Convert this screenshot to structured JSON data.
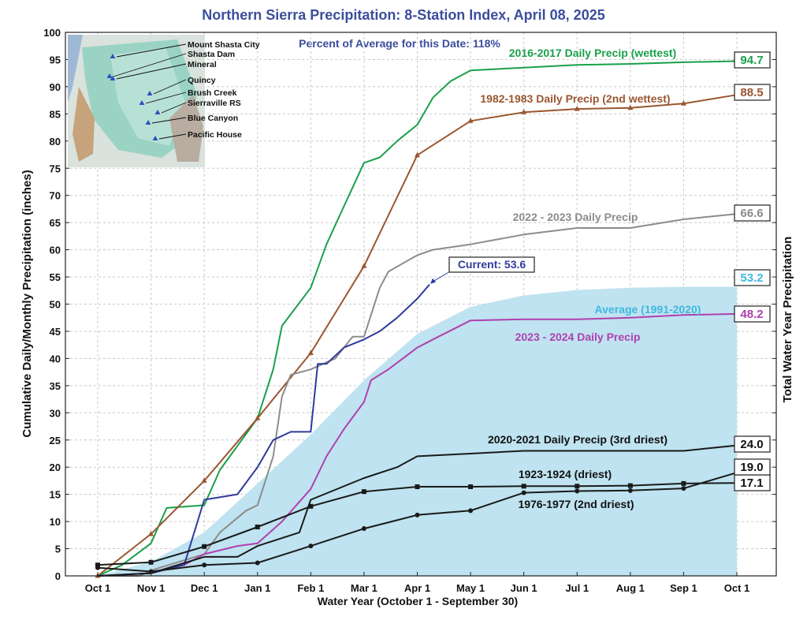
{
  "chart_data": {
    "type": "line",
    "title": "Northern Sierra Precipitation: 8-Station Index, April 08, 2025",
    "subtitle": "Percent of Average for this Date: 118%",
    "xlabel": "Water Year (October 1 - September 30)",
    "ylabel": "Cumulative Daily/Monthly Precipitation (inches)",
    "ylabel_right": "Total Water Year Precipitation",
    "x_tick_labels": [
      "Oct 1",
      "Nov 1",
      "Dec 1",
      "Jan 1",
      "Feb 1",
      "Mar 1",
      "Apr 1",
      "May 1",
      "Jun 1",
      "Jul 1",
      "Aug 1",
      "Sep 1",
      "Oct 1"
    ],
    "ylim": [
      0,
      100
    ],
    "y_ticks": [
      0,
      5,
      10,
      15,
      20,
      25,
      30,
      35,
      40,
      45,
      50,
      55,
      60,
      65,
      70,
      75,
      80,
      85,
      90,
      95,
      100
    ],
    "grid": true,
    "annotation": "Current: 53.6",
    "map_stations": [
      "Mount Shasta City",
      "Shasta Dam",
      "Mineral",
      "Quincy",
      "Brush Creek",
      "Sierraville RS",
      "Blue Canyon",
      "Pacific House"
    ],
    "series": [
      {
        "name": "Average (1991-2020)",
        "kind": "area",
        "color": "#bfe3f0",
        "label_color": "#3fb8e0",
        "total_label": "53.2",
        "x": [
          "Oct 1",
          "Nov 1",
          "Dec 1",
          "Jan 1",
          "Feb 1",
          "Mar 1",
          "Apr 1",
          "May 1",
          "Jun 1",
          "Jul 1",
          "Aug 1",
          "Sep 1",
          "Oct 1"
        ],
        "y": [
          0,
          2.6,
          8.0,
          17.0,
          26.0,
          36.0,
          44.5,
          49.5,
          51.6,
          52.6,
          53.0,
          53.2,
          53.2
        ]
      },
      {
        "name": "2016-2017 Daily Precip (wettest)",
        "color": "#1aa04a",
        "total_label": "94.7",
        "x": [
          "Oct 1",
          "Oct 15",
          "Nov 1",
          "Nov 10",
          "Dec 1",
          "Dec 10",
          "Jan 1",
          "Jan 10",
          "Jan 15",
          "Feb 1",
          "Feb 10",
          "Feb 20",
          "Mar 1",
          "Mar 10",
          "Mar 20",
          "Apr 1",
          "Apr 10",
          "Apr 20",
          "May 1",
          "Jun 1",
          "Jul 1",
          "Aug 1",
          "Sep 1",
          "Oct 1"
        ],
        "y": [
          0,
          2,
          6,
          12.5,
          13,
          19.5,
          29,
          38,
          46,
          53,
          61,
          68,
          76,
          77,
          80,
          83,
          88,
          91,
          93,
          93.5,
          94,
          94.2,
          94.5,
          94.7
        ]
      },
      {
        "name": "1982-1983 Daily Precip (2nd wettest)",
        "color": "#9a5630",
        "total_label": "88.5",
        "x": [
          "Oct 1",
          "Nov 1",
          "Dec 1",
          "Jan 1",
          "Feb 1",
          "Mar 1",
          "Apr 1",
          "May 1",
          "Jun 1",
          "Jul 1",
          "Aug 1",
          "Sep 1",
          "Oct 1"
        ],
        "y": [
          0,
          7.7,
          17.5,
          29.0,
          41.0,
          57.0,
          77.4,
          83.7,
          85.3,
          85.9,
          86.1,
          86.9,
          88.5
        ]
      },
      {
        "name": "2022 - 2023 Daily Precip",
        "color": "#8c8c8c",
        "total_label": "66.6",
        "x": [
          "Oct 1",
          "Oct 25",
          "Nov 1",
          "Dec 1",
          "Dec 10",
          "Dec 25",
          "Jan 1",
          "Jan 10",
          "Jan 15",
          "Jan 20",
          "Feb 1",
          "Feb 15",
          "Feb 25",
          "Mar 1",
          "Mar 10",
          "Mar 15",
          "Apr 1",
          "Apr 10",
          "May 1",
          "Jun 1",
          "Jul 1",
          "Aug 1",
          "Sep 1",
          "Oct 1"
        ],
        "y": [
          0,
          0,
          1,
          4,
          8,
          12,
          13,
          22,
          33,
          37,
          38,
          40,
          44,
          44,
          53,
          56,
          59,
          60,
          61,
          62.8,
          64,
          64,
          65.6,
          66.6
        ]
      },
      {
        "name": "2023 - 2024 Daily Precip",
        "color": "#b040b0",
        "total_label": "48.2",
        "x": [
          "Oct 1",
          "Nov 1",
          "Nov 20",
          "Dec 1",
          "Dec 20",
          "Jan 1",
          "Jan 15",
          "Feb 1",
          "Feb 10",
          "Feb 20",
          "Mar 1",
          "Mar 5",
          "Mar 15",
          "Apr 1",
          "Apr 10",
          "May 1",
          "Jun 1",
          "Jul 1",
          "Aug 1",
          "Sep 1",
          "Oct 1"
        ],
        "y": [
          0,
          0.5,
          2,
          4,
          5.5,
          6,
          10,
          16,
          22,
          27,
          32,
          36,
          38,
          42,
          43.5,
          47,
          47.2,
          47.2,
          47.5,
          48,
          48.2
        ]
      },
      {
        "name": "Current",
        "color": "#2f3a9a",
        "total_label": "",
        "x": [
          "Oct 1",
          "Nov 1",
          "Nov 20",
          "Dec 1",
          "Dec 20",
          "Jan 1",
          "Jan 10",
          "Jan 20",
          "Feb 1",
          "Feb 5",
          "Feb 10",
          "Feb 20",
          "Mar 1",
          "Mar 10",
          "Mar 20",
          "Apr 1",
          "Apr 8"
        ],
        "y": [
          0,
          0.5,
          2,
          14,
          15,
          20,
          25,
          26.5,
          26.5,
          39,
          39,
          42,
          43.5,
          45,
          47.5,
          51,
          53.6
        ]
      },
      {
        "name": "2020-2021 Daily Precip (3rd driest)",
        "color": "#1a1a1a",
        "total_label": "24.0",
        "x": [
          "Oct 1",
          "Nov 1",
          "Dec 1",
          "Dec 20",
          "Jan 1",
          "Jan 25",
          "Feb 1",
          "Mar 1",
          "Mar 20",
          "Apr 1",
          "May 1",
          "Jun 1",
          "Jul 1",
          "Aug 1",
          "Sep 1",
          "Oct 1"
        ],
        "y": [
          0,
          0.5,
          3.5,
          3.5,
          5.5,
          8,
          14,
          18,
          20,
          22,
          22.5,
          23,
          23,
          23,
          23,
          24.0
        ]
      },
      {
        "name": "1923-1924 (driest)",
        "color": "#1a1a1a",
        "total_label": "17.1",
        "x": [
          "Oct 1",
          "Nov 1",
          "Dec 1",
          "Jan 1",
          "Feb 1",
          "Mar 1",
          "Apr 1",
          "May 1",
          "Jun 1",
          "Jul 1",
          "Aug 1",
          "Sep 1",
          "Oct 1"
        ],
        "y": [
          2.0,
          2.5,
          5.4,
          9.0,
          12.8,
          15.5,
          16.4,
          16.4,
          16.5,
          16.5,
          16.6,
          17.0,
          17.1
        ]
      },
      {
        "name": "1976-1977 (2nd driest)",
        "color": "#1a1a1a",
        "total_label": "19.0",
        "x": [
          "Oct 1",
          "Nov 1",
          "Dec 1",
          "Jan 1",
          "Feb 1",
          "Mar 1",
          "Apr 1",
          "May 1",
          "Jun 1",
          "Jul 1",
          "Aug 1",
          "Sep 1",
          "Oct 1"
        ],
        "y": [
          1.5,
          0.8,
          2.0,
          2.4,
          5.5,
          8.7,
          11.2,
          12.0,
          15.3,
          15.6,
          15.7,
          16.1,
          19.0
        ]
      }
    ]
  }
}
